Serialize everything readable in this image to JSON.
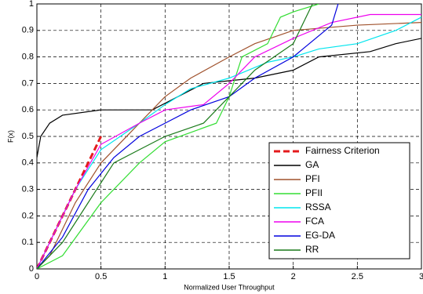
{
  "chart_data": {
    "type": "line",
    "xlabel": "Normalized User Throughput",
    "ylabel": "F(x)",
    "xlim": [
      0,
      3
    ],
    "xticks": [
      0,
      0.5,
      1,
      1.5,
      2,
      2.5,
      3
    ],
    "ylim": [
      0,
      1
    ],
    "yticks": [
      0,
      0.1,
      0.2,
      0.3,
      0.4,
      0.5,
      0.6,
      0.7,
      0.8,
      0.9,
      1
    ],
    "grid": true,
    "legend": "lower right",
    "series": [
      {
        "name": "Fairness Criterion",
        "color": "#e41a1c",
        "line_style": "dashed",
        "x": [
          0,
          0.5
        ],
        "values": [
          0,
          0.5
        ]
      },
      {
        "name": "GA",
        "color": "#000000",
        "x": [
          0,
          0.03,
          0.1,
          0.2,
          0.5,
          0.9,
          1.1,
          1.3,
          1.5,
          1.7,
          2.0,
          2.2,
          2.6,
          2.8,
          3
        ],
        "values": [
          0.42,
          0.5,
          0.55,
          0.58,
          0.6,
          0.6,
          0.65,
          0.7,
          0.71,
          0.72,
          0.75,
          0.8,
          0.82,
          0.85,
          0.87
        ]
      },
      {
        "name": "PFI",
        "color": "#a0522d",
        "x": [
          0,
          0.1,
          0.3,
          0.5,
          0.8,
          1,
          1.2,
          1.5,
          1.7,
          2,
          2.5,
          3
        ],
        "values": [
          0,
          0.05,
          0.25,
          0.4,
          0.55,
          0.65,
          0.72,
          0.8,
          0.85,
          0.9,
          0.92,
          0.93
        ]
      },
      {
        "name": "PFII",
        "color": "#33dd33",
        "x": [
          0,
          0.2,
          0.5,
          0.8,
          1,
          1.4,
          1.5,
          1.6,
          1.8,
          1.9,
          2.0,
          2.2
        ],
        "values": [
          0,
          0.05,
          0.25,
          0.4,
          0.48,
          0.55,
          0.65,
          0.8,
          0.85,
          0.95,
          0.97,
          1
        ]
      },
      {
        "name": "RSSA",
        "color": "#00e5ee",
        "x": [
          0,
          0.1,
          0.3,
          0.5,
          0.8,
          1,
          1.2,
          1.5,
          1.8,
          2,
          2.2,
          2.5,
          2.8,
          3
        ],
        "values": [
          0,
          0.1,
          0.3,
          0.45,
          0.55,
          0.62,
          0.68,
          0.72,
          0.78,
          0.8,
          0.83,
          0.85,
          0.9,
          0.95
        ]
      },
      {
        "name": "FCA",
        "color": "#ee00ee",
        "x": [
          0,
          0.1,
          0.3,
          0.5,
          0.8,
          1,
          1.3,
          1.5,
          1.7,
          2,
          2.3,
          2.6,
          3
        ],
        "values": [
          0,
          0.1,
          0.3,
          0.47,
          0.55,
          0.6,
          0.62,
          0.7,
          0.8,
          0.87,
          0.93,
          0.96,
          0.96
        ]
      },
      {
        "name": "EG-DA",
        "color": "#0000dd",
        "x": [
          0,
          0.2,
          0.4,
          0.6,
          0.8,
          1,
          1.2,
          1.5,
          1.7,
          2,
          2.2,
          2.3,
          2.35
        ],
        "values": [
          0,
          0.12,
          0.3,
          0.42,
          0.5,
          0.55,
          0.6,
          0.65,
          0.72,
          0.8,
          0.88,
          0.92,
          1
        ]
      },
      {
        "name": "RR",
        "color": "#1a7a1a",
        "x": [
          0,
          0.2,
          0.4,
          0.6,
          0.8,
          1,
          1.3,
          1.5,
          1.7,
          2,
          2.1,
          2.15
        ],
        "values": [
          0,
          0.1,
          0.25,
          0.4,
          0.45,
          0.5,
          0.55,
          0.65,
          0.75,
          0.85,
          0.95,
          1
        ]
      }
    ]
  }
}
